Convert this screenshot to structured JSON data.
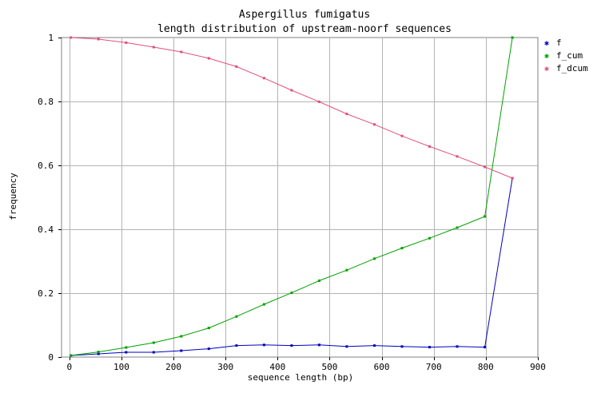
{
  "chart_data": {
    "type": "line",
    "title": "Aspergillus fumigatus",
    "subtitle": "length distribution of upstream-noorf sequences",
    "xlabel": "sequence length (bp)",
    "ylabel": "frequency",
    "xlim": [
      -15,
      900
    ],
    "ylim": [
      0,
      1
    ],
    "xticks": [
      "0",
      "100",
      "200",
      "300",
      "400",
      "500",
      "600",
      "700",
      "800",
      "900"
    ],
    "yticks": [
      "0",
      "0.2",
      "0.4",
      "0.6",
      "0.8",
      "1"
    ],
    "grid": true,
    "legend_position": "right",
    "x": [
      3,
      56,
      109,
      162,
      215,
      268,
      321,
      374,
      427,
      480,
      533,
      586,
      639,
      692,
      745,
      798,
      851
    ],
    "series": [
      {
        "name": "f",
        "color": "#0000c0",
        "values": [
          0.005,
          0.01,
          0.015,
          0.015,
          0.02,
          0.026,
          0.036,
          0.038,
          0.036,
          0.038,
          0.033,
          0.036,
          0.033,
          0.031,
          0.033,
          0.031,
          0.56
        ]
      },
      {
        "name": "f_cum",
        "color": "#00a000",
        "values": [
          0.005,
          0.016,
          0.03,
          0.045,
          0.065,
          0.091,
          0.127,
          0.165,
          0.201,
          0.239,
          0.272,
          0.308,
          0.341,
          0.372,
          0.405,
          0.44,
          1.0
        ]
      },
      {
        "name": "f_dcum",
        "color": "#e0507a",
        "values": [
          1.0,
          0.995,
          0.984,
          0.97,
          0.955,
          0.935,
          0.909,
          0.873,
          0.835,
          0.799,
          0.761,
          0.728,
          0.692,
          0.659,
          0.628,
          0.595,
          0.56
        ]
      }
    ]
  }
}
